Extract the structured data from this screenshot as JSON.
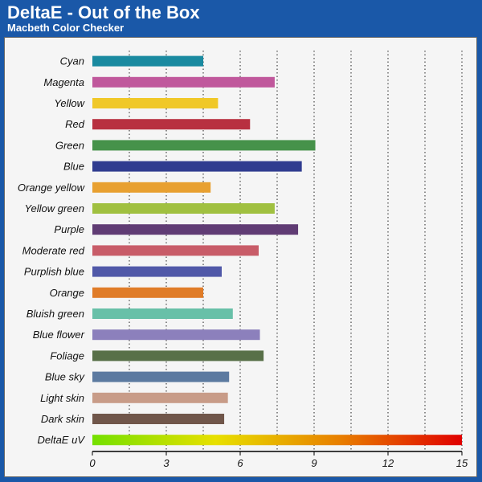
{
  "header": {
    "title": "DeltaE - Out of the Box",
    "subtitle": "Macbeth Color Checker"
  },
  "colors": {
    "frame": "#1a58a8",
    "panel": "#f5f5f5"
  },
  "chart_data": {
    "type": "bar",
    "orientation": "horizontal",
    "title": "DeltaE - Out of the Box",
    "subtitle": "Macbeth Color Checker",
    "xlabel": "",
    "ylabel": "",
    "xlim": [
      0,
      15
    ],
    "xticks": [
      0,
      3,
      6,
      9,
      12,
      15
    ],
    "grid": "vertical-dotted",
    "categories": [
      "Cyan",
      "Magenta",
      "Yellow",
      "Red",
      "Green",
      "Blue",
      "Orange yellow",
      "Yellow green",
      "Purple",
      "Moderate red",
      "Purplish blue",
      "Orange",
      "Bluish green",
      "Blue flower",
      "Foliage",
      "Blue sky",
      "Light skin",
      "Dark skin",
      "DeltaE uV"
    ],
    "values": [
      4.5,
      7.4,
      5.1,
      6.4,
      9.05,
      8.5,
      4.8,
      7.4,
      8.35,
      6.75,
      5.25,
      4.5,
      5.7,
      6.8,
      6.95,
      5.55,
      5.5,
      5.35,
      15
    ],
    "bar_colors": [
      "#1a8aa0",
      "#c0589c",
      "#f0c828",
      "#b83040",
      "#46924a",
      "#303c90",
      "#e8a030",
      "#a0c040",
      "#603c74",
      "#c85c68",
      "#5058a8",
      "#e07c28",
      "#68c0a8",
      "#8c80bc",
      "#587048",
      "#5c7aa0",
      "#c89c88",
      "#70564a",
      "gradient"
    ],
    "gradient_stops": [
      "#74e000",
      "#e8e000",
      "#e88000",
      "#e00000"
    ]
  }
}
